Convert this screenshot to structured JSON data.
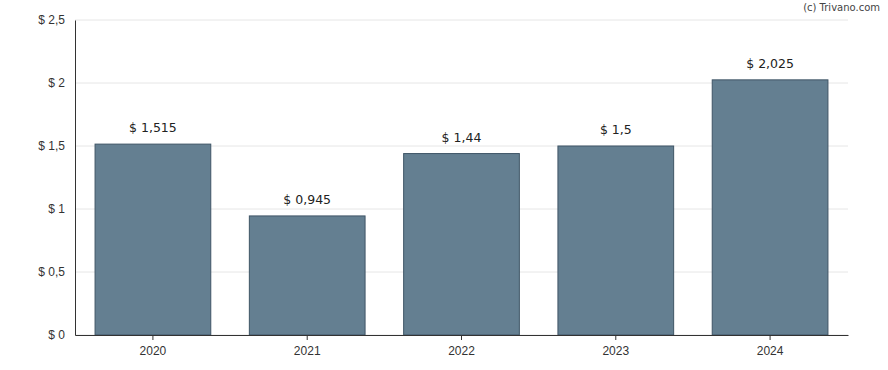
{
  "chart_data": {
    "type": "bar",
    "annotations": [
      "(c) Trivano.com"
    ],
    "categories": [
      "2020",
      "2021",
      "2022",
      "2023",
      "2024"
    ],
    "values": [
      1.515,
      0.945,
      1.44,
      1.5,
      2.025
    ],
    "value_labels": [
      "$ 1,515",
      "$ 0,945",
      "$ 1,44",
      "$ 1,5",
      "$ 2,025"
    ],
    "data_labels": true,
    "color": "#647f91",
    "ylim": [
      0,
      2.5
    ],
    "yticks": [
      {
        "value": 0,
        "label": "$ 0"
      },
      {
        "value": 0.5,
        "label": "$ 0,5"
      },
      {
        "value": 1,
        "label": "$ 1"
      },
      {
        "value": 1.5,
        "label": "$ 1,5"
      },
      {
        "value": 2,
        "label": "$ 2"
      },
      {
        "value": 2.5,
        "label": "$ 2,5"
      }
    ],
    "grid": true
  }
}
